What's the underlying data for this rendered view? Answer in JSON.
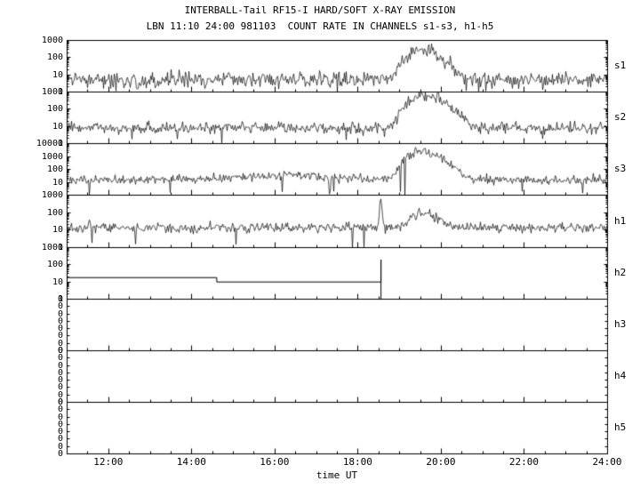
{
  "colors": {
    "background": "#ffffff",
    "foreground": "#000000"
  },
  "chart_data": {
    "type": "line",
    "title": "INTERBALL-Tail RF15-I HARD/SOFT X-RAY EMISSION",
    "subtitle": "LBN 11:10 24:00 981103  COUNT RATE IN CHANNELS s1-s3, h1-h5",
    "xlabel": "time UT",
    "x_axis": {
      "unit": "hours UT",
      "range": [
        11,
        24
      ],
      "major_ticks": [
        {
          "hour": 12,
          "label": "12:00"
        },
        {
          "hour": 14,
          "label": "14:00"
        },
        {
          "hour": 16,
          "label": "16:00"
        },
        {
          "hour": 18,
          "label": "18:00"
        },
        {
          "hour": 20,
          "label": "20:00"
        },
        {
          "hour": 22,
          "label": "22:00"
        },
        {
          "hour": 24,
          "label": "24:00"
        }
      ],
      "minor_tick_step_hours": 0.5
    },
    "panels": [
      {
        "label": "s1",
        "scale": "log",
        "ylim": [
          1,
          1000
        ],
        "yticks": [
          {
            "value": 1000,
            "label": "1000"
          },
          {
            "value": 100,
            "label": "100"
          },
          {
            "value": 10,
            "label": "10"
          },
          {
            "value": 1,
            "label": "1"
          }
        ],
        "signal": {
          "kind": "counts",
          "baseline": 5,
          "noise_dex": 0.22,
          "dropout_prob": 0.02,
          "bursts": [
            {
              "t0": 19.45,
              "peak": 280,
              "rise_h": 0.22,
              "decay_h": 0.35
            }
          ]
        }
      },
      {
        "label": "s2",
        "scale": "log",
        "ylim": [
          1,
          1000
        ],
        "yticks": [
          {
            "value": 1000,
            "label": "1000"
          },
          {
            "value": 100,
            "label": "100"
          },
          {
            "value": 10,
            "label": "10"
          },
          {
            "value": 1,
            "label": "1"
          }
        ],
        "signal": {
          "kind": "counts",
          "baseline": 8,
          "noise_dex": 0.17,
          "dropout_prob": 0.012,
          "bursts": [
            {
              "t0": 19.5,
              "peak": 650,
              "rise_h": 0.22,
              "decay_h": 0.4
            }
          ]
        }
      },
      {
        "label": "s3",
        "scale": "log",
        "ylim": [
          1,
          10000
        ],
        "yticks": [
          {
            "value": 10000,
            "label": "10000"
          },
          {
            "value": 1000,
            "label": "1000"
          },
          {
            "value": 100,
            "label": "100"
          },
          {
            "value": 10,
            "label": "10"
          }
        ],
        "signal": {
          "kind": "counts",
          "baseline": 15,
          "noise_dex": 0.17,
          "dropout_prob": 0.01,
          "bursts": [
            {
              "t0": 16.3,
              "peak": 18,
              "rise_h": 1.0,
              "decay_h": 0.9
            },
            {
              "t0": 19.45,
              "peak": 2500,
              "rise_h": 0.2,
              "decay_h": 0.35
            }
          ]
        }
      },
      {
        "label": "h1",
        "scale": "log",
        "ylim": [
          1,
          1000
        ],
        "yticks": [
          {
            "value": 1000,
            "label": "1000"
          },
          {
            "value": 100,
            "label": "100"
          },
          {
            "value": 10,
            "label": "10"
          },
          {
            "value": 1,
            "label": "1"
          }
        ],
        "signal": {
          "kind": "counts",
          "baseline": 14,
          "noise_dex": 0.14,
          "dropout_prob": 0.008,
          "bursts": [
            {
              "t0": 18.55,
              "peak": 500,
              "rise_h": 0.02,
              "decay_h": 0.02
            },
            {
              "t0": 19.5,
              "peak": 85,
              "rise_h": 0.15,
              "decay_h": 0.28
            }
          ]
        }
      },
      {
        "label": "h2",
        "scale": "log",
        "ylim": [
          1,
          1000
        ],
        "yticks": [
          {
            "value": 1000,
            "label": "1000"
          },
          {
            "value": 100,
            "label": "100"
          },
          {
            "value": 10,
            "label": "10"
          },
          {
            "value": 1,
            "label": "1"
          }
        ],
        "signal": {
          "kind": "segments",
          "points": [
            [
              11,
              18
            ],
            [
              14.6,
              18
            ],
            [
              14.6,
              10
            ],
            [
              18.55,
              10
            ],
            [
              18.55,
              200
            ],
            [
              18.55,
              1
            ]
          ]
        }
      },
      {
        "label": "h3",
        "scale": "linear",
        "ylim": [
          0,
          0
        ],
        "yticks": [
          {
            "label": "0"
          },
          {
            "label": "0"
          },
          {
            "label": "0"
          },
          {
            "label": "0"
          },
          {
            "label": "0"
          },
          {
            "label": "0"
          },
          {
            "label": "0"
          },
          {
            "label": "0"
          }
        ],
        "signal": {
          "kind": "none"
        }
      },
      {
        "label": "h4",
        "scale": "linear",
        "ylim": [
          0,
          0
        ],
        "yticks": [
          {
            "label": "0"
          },
          {
            "label": "0"
          },
          {
            "label": "0"
          },
          {
            "label": "0"
          },
          {
            "label": "0"
          },
          {
            "label": "0"
          },
          {
            "label": "0"
          },
          {
            "label": "0"
          }
        ],
        "signal": {
          "kind": "none"
        }
      },
      {
        "label": "h5",
        "scale": "linear",
        "ylim": [
          0,
          0
        ],
        "yticks": [
          {
            "label": "0"
          },
          {
            "label": "0"
          },
          {
            "label": "0"
          },
          {
            "label": "0"
          },
          {
            "label": "0"
          },
          {
            "label": "0"
          },
          {
            "label": "0"
          },
          {
            "label": "0"
          }
        ],
        "signal": {
          "kind": "none"
        }
      }
    ]
  }
}
